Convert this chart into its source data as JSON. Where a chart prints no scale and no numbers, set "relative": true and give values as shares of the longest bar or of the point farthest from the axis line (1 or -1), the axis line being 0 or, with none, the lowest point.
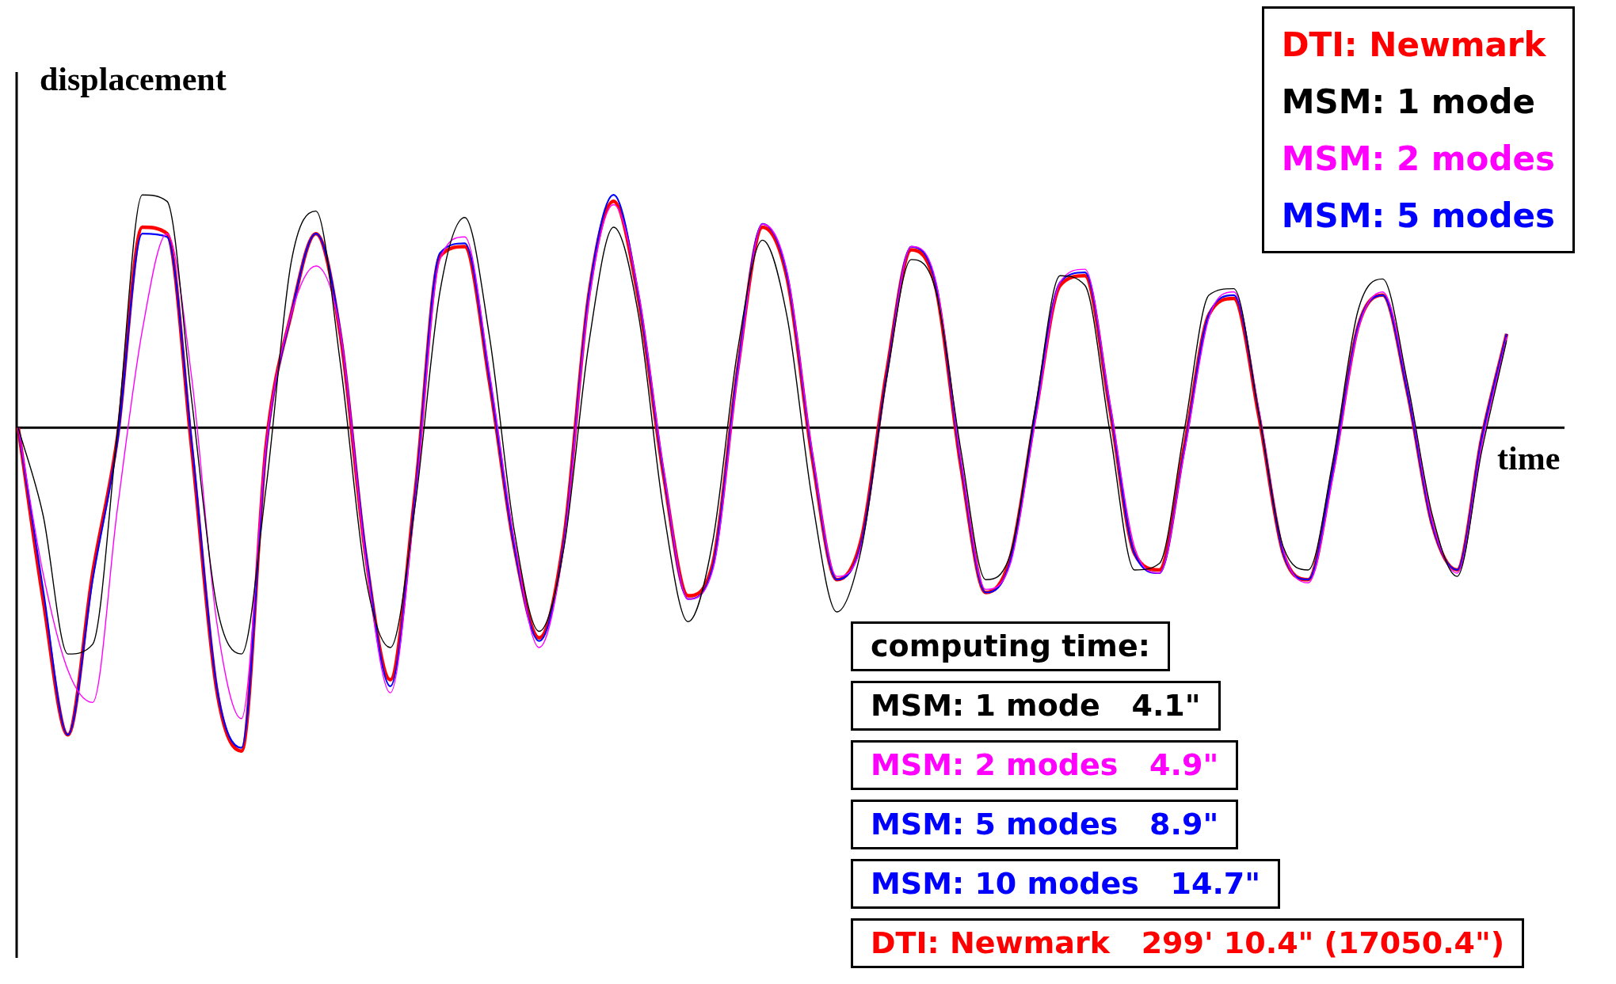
{
  "chart_data": {
    "type": "line",
    "xlabel": "time",
    "ylabel": "displacement",
    "relative": true,
    "legend": "top right",
    "categories": [
      null,
      null,
      null,
      null,
      null,
      null,
      null,
      null,
      null,
      null,
      null,
      null,
      null,
      null,
      null,
      null,
      null,
      null,
      null,
      null,
      null,
      null,
      null,
      null,
      null,
      null,
      null,
      null,
      null,
      null,
      null,
      null,
      null,
      null,
      null,
      null,
      null,
      null,
      null,
      null,
      null,
      null,
      null,
      null,
      null,
      null,
      null,
      null,
      null,
      null,
      null,
      null,
      null,
      null,
      null,
      null,
      null,
      null,
      null,
      null,
      null
    ],
    "series": [
      {
        "name": "DTI: Newmark",
        "color": "#ff0000",
        "values": [
          0,
          -0.53,
          -0.95,
          -0.45,
          -0.03,
          0.62,
          0.6,
          -0.07,
          -0.81,
          -1.0,
          -0.05,
          0.35,
          0.6,
          0.28,
          -0.39,
          -0.78,
          -0.2,
          0.53,
          0.56,
          0.14,
          -0.37,
          -0.65,
          -0.34,
          0.41,
          0.7,
          0.4,
          -0.14,
          -0.52,
          -0.42,
          0.18,
          0.62,
          0.46,
          -0.09,
          -0.47,
          -0.34,
          0.17,
          0.55,
          0.43,
          -0.12,
          -0.51,
          -0.4,
          0.04,
          0.44,
          0.47,
          0.06,
          -0.39,
          -0.44,
          -0.06,
          0.35,
          0.4,
          0.04,
          -0.39,
          -0.47,
          -0.13,
          0.31,
          0.41,
          0.11,
          -0.3,
          -0.44,
          -0.03,
          0.29
        ]
      },
      {
        "name": "MSM: 1 mode",
        "color": "#000000",
        "values": [
          0,
          -0.27,
          -0.7,
          -0.67,
          -0.01,
          0.72,
          0.7,
          0.08,
          -0.55,
          -0.7,
          -0.18,
          0.51,
          0.67,
          0.19,
          -0.46,
          -0.68,
          -0.24,
          0.42,
          0.65,
          0.28,
          -0.32,
          -0.63,
          -0.37,
          0.26,
          0.62,
          0.35,
          -0.25,
          -0.6,
          -0.35,
          0.24,
          0.58,
          0.34,
          -0.22,
          -0.57,
          -0.37,
          0.15,
          0.52,
          0.42,
          -0.07,
          -0.47,
          -0.39,
          0.06,
          0.47,
          0.44,
          -0.01,
          -0.44,
          -0.42,
          -0.01,
          0.41,
          0.43,
          0.05,
          -0.37,
          -0.44,
          -0.1,
          0.36,
          0.46,
          0.14,
          -0.27,
          -0.46,
          -0.07,
          0.27
        ]
      },
      {
        "name": "MSM: 2 modes",
        "color": "#ff00ff",
        "values": [
          0,
          -0.45,
          -0.75,
          -0.85,
          -0.25,
          0.3,
          0.6,
          0.15,
          -0.6,
          -0.9,
          -0.05,
          0.35,
          0.5,
          0.29,
          -0.4,
          -0.82,
          -0.23,
          0.52,
          0.59,
          0.17,
          -0.35,
          -0.68,
          -0.36,
          0.39,
          0.69,
          0.42,
          -0.12,
          -0.53,
          -0.44,
          0.16,
          0.63,
          0.48,
          -0.07,
          -0.46,
          -0.36,
          0.15,
          0.56,
          0.45,
          -0.1,
          -0.5,
          -0.42,
          0.02,
          0.45,
          0.49,
          0.08,
          -0.37,
          -0.45,
          -0.08,
          0.34,
          0.42,
          0.06,
          -0.38,
          -0.48,
          -0.15,
          0.3,
          0.42,
          0.13,
          -0.29,
          -0.45,
          -0.05,
          0.28
        ]
      },
      {
        "name": "MSM: 5 modes",
        "color": "#0000ff",
        "values": [
          0,
          -0.5,
          -0.95,
          -0.47,
          -0.04,
          0.6,
          0.59,
          -0.05,
          -0.8,
          -0.99,
          -0.06,
          0.35,
          0.6,
          0.29,
          -0.38,
          -0.8,
          -0.21,
          0.54,
          0.57,
          0.15,
          -0.37,
          -0.66,
          -0.35,
          0.41,
          0.72,
          0.41,
          -0.13,
          -0.53,
          -0.43,
          0.18,
          0.63,
          0.47,
          -0.08,
          -0.47,
          -0.35,
          0.16,
          0.56,
          0.44,
          -0.11,
          -0.51,
          -0.41,
          0.04,
          0.45,
          0.48,
          0.07,
          -0.39,
          -0.45,
          -0.07,
          0.35,
          0.41,
          0.05,
          -0.39,
          -0.47,
          -0.13,
          0.31,
          0.41,
          0.11,
          -0.3,
          -0.44,
          -0.03,
          0.29
        ]
      }
    ],
    "annotations": [
      "computing time:",
      "MSM: 1 mode   4.1\"",
      "MSM: 2 modes   4.9\"",
      "MSM: 5 modes   8.9\"",
      "MSM: 10 modes   14.7\"",
      "DTI: Newmark   299' 10.4\" (17050.4\")"
    ]
  }
}
